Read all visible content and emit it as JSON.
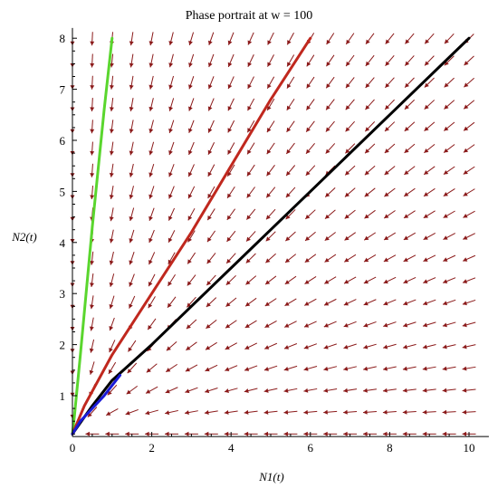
{
  "chart_data": {
    "type": "line",
    "title": "Phase portrait at w = 100",
    "xlabel": "N1(t)",
    "ylabel": "N2(t)",
    "xlim": [
      0,
      10.5
    ],
    "ylim": [
      0.2,
      8.2
    ],
    "x_ticks": [
      "0",
      "2",
      "4",
      "6",
      "8",
      "10"
    ],
    "y_ticks": [
      "1",
      "2",
      "3",
      "4",
      "5",
      "6",
      "7",
      "8"
    ],
    "grid": false,
    "legend": "none",
    "vector_field": {
      "color": "#8b1a1a",
      "x_start": 0.0,
      "x_end": 10.0,
      "x_step": 0.5,
      "y_start": 0.25,
      "y_end": 8.0,
      "y_step": 0.43,
      "equilibrium": [
        0.0,
        0.25
      ]
    },
    "series": [
      {
        "color": "#5ad62e",
        "x": [
          0.0,
          0.05,
          0.2,
          0.5,
          0.8,
          1.0
        ],
        "y": [
          0.25,
          0.6,
          1.8,
          4.3,
          6.6,
          8.0
        ]
      },
      {
        "color": "#c0281e",
        "x": [
          0.0,
          0.3,
          1.0,
          2.0,
          3.0,
          4.0,
          5.0,
          6.0
        ],
        "y": [
          0.25,
          0.8,
          1.8,
          3.0,
          4.2,
          5.5,
          6.8,
          8.0
        ]
      },
      {
        "color": "#000000",
        "x": [
          0.0,
          0.5,
          1.0,
          2.0,
          4.0,
          6.0,
          8.0,
          10.0
        ],
        "y": [
          0.25,
          0.8,
          1.3,
          2.0,
          3.5,
          5.0,
          6.5,
          8.0
        ]
      },
      {
        "color": "#1a1ad6",
        "x": [
          0.0,
          0.2,
          0.5,
          0.8,
          1.0,
          1.2
        ],
        "y": [
          0.25,
          0.5,
          0.75,
          1.0,
          1.2,
          1.4
        ]
      }
    ]
  }
}
